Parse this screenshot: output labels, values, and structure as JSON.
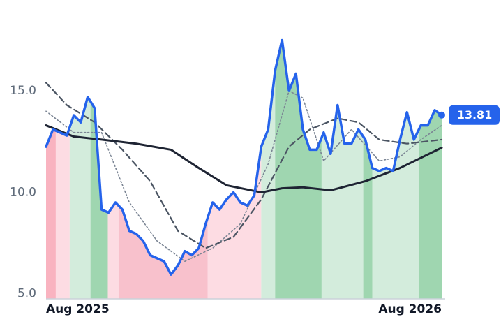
{
  "chart_data": {
    "type": "line",
    "xlim": [
      0,
      57
    ],
    "ylim": [
      4.75,
      18
    ],
    "xticks": [
      {
        "value": 0,
        "label": "Aug 2025"
      },
      {
        "value": 57,
        "label": "Aug 2026"
      }
    ],
    "yticks": [
      {
        "value": 5,
        "label": "5.0"
      },
      {
        "value": 10,
        "label": "10.0"
      },
      {
        "value": 15,
        "label": "15.0"
      }
    ],
    "grid": false,
    "bands": [
      {
        "start": 0,
        "end": 1.4,
        "color": "#f9b3c0"
      },
      {
        "start": 1.4,
        "end": 3.4,
        "color": "#fddce3"
      },
      {
        "start": 3.4,
        "end": 6.4,
        "color": "#d3ecdc"
      },
      {
        "start": 6.4,
        "end": 8.9,
        "color": "#9fd6b0"
      },
      {
        "start": 8.9,
        "end": 10.5,
        "color": "#fddce3"
      },
      {
        "start": 10.5,
        "end": 23.3,
        "color": "#f8c1cc"
      },
      {
        "start": 23.3,
        "end": 31,
        "color": "#fddce3"
      },
      {
        "start": 31,
        "end": 33,
        "color": "#d3ecdc"
      },
      {
        "start": 33,
        "end": 39.7,
        "color": "#9fd6b0"
      },
      {
        "start": 39.7,
        "end": 45.7,
        "color": "#d3ecdc"
      },
      {
        "start": 45.7,
        "end": 47,
        "color": "#9fd6b0"
      },
      {
        "start": 47,
        "end": 53.7,
        "color": "#d3ecdc"
      },
      {
        "start": 53.7,
        "end": 57,
        "color": "#9fd6b0"
      }
    ],
    "series": [
      {
        "color": "#2563eb",
        "style": "solid",
        "width": 3.5,
        "x": [
          0,
          1,
          2,
          3,
          4,
          5,
          6,
          7,
          8,
          9,
          10,
          11,
          12,
          13,
          14,
          15,
          16,
          17,
          18,
          19,
          20,
          21,
          22,
          23,
          24,
          25,
          26,
          27,
          28,
          29,
          30,
          31,
          32,
          33,
          34,
          35,
          36,
          37,
          38,
          39,
          40,
          41,
          42,
          43,
          44,
          45,
          46,
          47,
          48,
          49,
          50,
          51,
          52,
          53,
          54,
          55,
          56,
          57
        ],
        "values": [
          12.25,
          13.1,
          12.95,
          12.8,
          13.8,
          13.45,
          14.7,
          14.15,
          9.15,
          9.0,
          9.5,
          9.15,
          8.1,
          7.95,
          7.6,
          6.9,
          6.75,
          6.6,
          5.95,
          6.4,
          7.1,
          6.9,
          7.25,
          8.45,
          9.5,
          9.15,
          9.65,
          10.0,
          9.5,
          9.35,
          9.85,
          12.25,
          13.1,
          16.0,
          17.5,
          15.0,
          15.85,
          13.1,
          12.1,
          12.1,
          12.95,
          11.9,
          14.3,
          12.4,
          12.4,
          13.1,
          12.6,
          11.2,
          11.05,
          11.2,
          11.05,
          12.6,
          13.95,
          12.6,
          13.3,
          13.3,
          14.05,
          13.81
        ],
        "value_labels": [
          null,
          null,
          null,
          null,
          null,
          null,
          null,
          null,
          null,
          null,
          null,
          null,
          null,
          null,
          null,
          null,
          null,
          null,
          null,
          null,
          null,
          null,
          null,
          null,
          null,
          null,
          null,
          null,
          null,
          null,
          null,
          null,
          null,
          null,
          null,
          null,
          null,
          null,
          null,
          null,
          null,
          null,
          null,
          null,
          null,
          null,
          null,
          null,
          null,
          null,
          null,
          null,
          null,
          null,
          null,
          null,
          null,
          "13.81"
        ]
      },
      {
        "color": "#1e2433",
        "style": "solid",
        "width": 3,
        "x": [
          0,
          4,
          8,
          13,
          18,
          22,
          26,
          31,
          34,
          37,
          41,
          46,
          51,
          57
        ],
        "values": [
          13.3,
          12.75,
          12.6,
          12.4,
          12.1,
          11.2,
          10.35,
          10.0,
          10.2,
          10.25,
          10.1,
          10.55,
          11.2,
          12.2
        ]
      },
      {
        "color": "#4b5563",
        "style": "dashed",
        "width": 2.2,
        "x": [
          0,
          3,
          7,
          11,
          15,
          19,
          23,
          27,
          31,
          35,
          38,
          42,
          45,
          48,
          52,
          57
        ],
        "values": [
          15.4,
          14.3,
          13.45,
          12.1,
          10.55,
          8.1,
          7.25,
          7.8,
          9.65,
          12.25,
          13.1,
          13.65,
          13.45,
          12.6,
          12.4,
          12.6
        ]
      },
      {
        "color": "#7b8594",
        "style": "dotted",
        "width": 1.6,
        "x": [
          0,
          4,
          8,
          12,
          16,
          20,
          24,
          28,
          32,
          35,
          37,
          40,
          44,
          48,
          51,
          54,
          57
        ],
        "values": [
          14.0,
          12.95,
          12.95,
          9.5,
          7.6,
          6.6,
          7.25,
          8.45,
          11.4,
          15.0,
          14.65,
          11.55,
          13.1,
          11.55,
          11.75,
          12.6,
          13.3
        ]
      }
    ]
  }
}
